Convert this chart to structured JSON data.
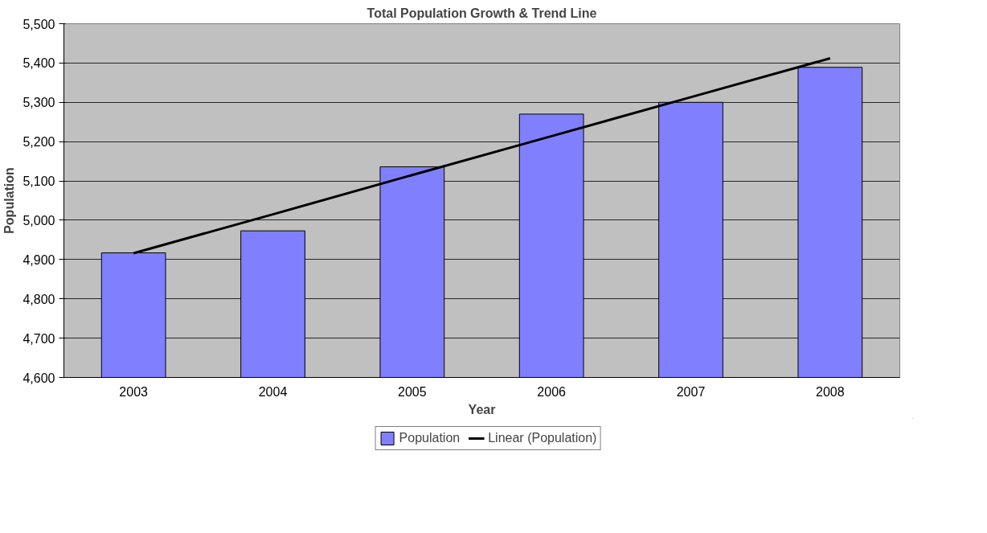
{
  "chart_data": {
    "type": "bar",
    "title": "Total Population Growth & Trend Line",
    "xlabel": "Year",
    "ylabel": "Population",
    "categories": [
      "2003",
      "2004",
      "2005",
      "2006",
      "2007",
      "2008"
    ],
    "series": [
      {
        "name": "Population",
        "color": "#8080ff",
        "values": [
          4917,
          4973,
          5136,
          5270,
          5300,
          5389
        ]
      },
      {
        "name": "Linear (Population)",
        "type": "line",
        "color": "#000000",
        "values": [
          4916,
          5015,
          5115,
          5214,
          5313,
          5412
        ]
      }
    ],
    "ylim": [
      4600,
      5500
    ],
    "yticks": [
      {
        "value": 4600,
        "label": "4,600"
      },
      {
        "value": 4700,
        "label": "4,700"
      },
      {
        "value": 4800,
        "label": "4,800"
      },
      {
        "value": 4900,
        "label": "4,900"
      },
      {
        "value": 5000,
        "label": "5,000"
      },
      {
        "value": 5100,
        "label": "5,100"
      },
      {
        "value": 5200,
        "label": "5,200"
      },
      {
        "value": 5300,
        "label": "5,300"
      },
      {
        "value": 5400,
        "label": "5,400"
      },
      {
        "value": 5500,
        "label": "5,500"
      }
    ],
    "grid": "y",
    "legend": "bottom"
  }
}
